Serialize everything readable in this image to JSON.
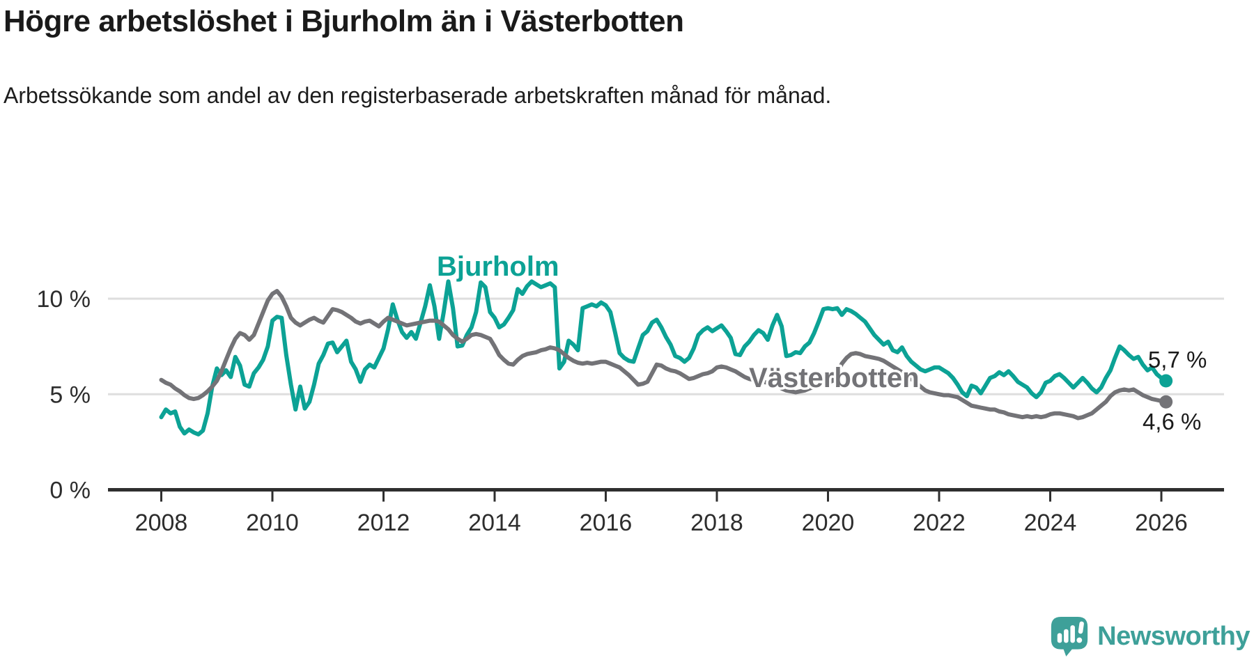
{
  "header": {
    "title": "Högre arbetslöshet i Bjurholm än i Västerbotten",
    "subtitle": "Arbetssökande som andel av den registerbaserade arbetskraften månad för månad."
  },
  "logo": {
    "text": "Newsworthy",
    "color": "#3ea099"
  },
  "chart_data": {
    "type": "line",
    "title": "Högre arbetslöshet i Bjurholm än i Västerbotten",
    "subtitle": "Arbetssökande som andel av den registerbaserade arbetskraften månad för månad.",
    "unit": "%",
    "x_start": {
      "year": 2008,
      "month": 1
    },
    "x_interval": "monthly",
    "xlim": [
      2007.05,
      2027.1
    ],
    "ylim": [
      0,
      12.3
    ],
    "grid": "horizontal",
    "y_ticks": [
      {
        "value": 10,
        "label": "10 %",
        "gridline": true
      },
      {
        "value": 5,
        "label": "5 %",
        "gridline": true
      },
      {
        "value": 0,
        "label": "0 %",
        "gridline": false
      }
    ],
    "x_ticks": [
      {
        "year": 2008,
        "label": "2008"
      },
      {
        "year": 2010,
        "label": "2010"
      },
      {
        "year": 2012,
        "label": "2012"
      },
      {
        "year": 2014,
        "label": "2014"
      },
      {
        "year": 2016,
        "label": "2016"
      },
      {
        "year": 2018,
        "label": "2018"
      },
      {
        "year": 2020,
        "label": "2020"
      },
      {
        "year": 2022,
        "label": "2022"
      },
      {
        "year": 2024,
        "label": "2024"
      },
      {
        "year": 2026,
        "label": "2026"
      }
    ],
    "series": [
      {
        "name": "Bjurholm",
        "color": "#0ca295",
        "end_value_label": "5,7 %",
        "values": [
          3.8,
          4.2,
          4.0,
          4.1,
          3.3,
          2.95,
          3.15,
          3.0,
          2.9,
          3.1,
          4.0,
          5.4,
          6.35,
          6.0,
          6.25,
          5.9,
          6.95,
          6.5,
          5.5,
          5.4,
          6.1,
          6.4,
          6.8,
          7.5,
          8.85,
          9.05,
          9.0,
          7.05,
          5.5,
          4.2,
          5.4,
          4.25,
          4.6,
          5.5,
          6.6,
          7.05,
          7.65,
          7.7,
          7.2,
          7.5,
          7.8,
          6.7,
          6.3,
          5.65,
          6.3,
          6.55,
          6.4,
          6.9,
          7.4,
          8.4,
          9.7,
          8.9,
          8.25,
          7.95,
          8.25,
          7.9,
          8.75,
          9.6,
          10.7,
          9.6,
          7.9,
          9.3,
          10.9,
          9.5,
          7.5,
          7.55,
          8.1,
          8.5,
          9.3,
          10.85,
          10.6,
          9.3,
          9.0,
          8.5,
          8.65,
          9.0,
          9.4,
          10.5,
          10.25,
          10.65,
          10.9,
          10.75,
          10.6,
          10.7,
          10.8,
          10.6,
          6.35,
          6.7,
          7.8,
          7.6,
          7.3,
          9.5,
          9.6,
          9.7,
          9.6,
          9.8,
          9.65,
          9.3,
          8.25,
          7.15,
          6.9,
          6.75,
          6.7,
          7.4,
          8.1,
          8.3,
          8.75,
          8.9,
          8.5,
          8.0,
          7.6,
          7.0,
          6.9,
          6.7,
          6.9,
          7.4,
          8.1,
          8.35,
          8.5,
          8.3,
          8.45,
          8.6,
          8.3,
          7.95,
          7.1,
          7.05,
          7.5,
          7.75,
          8.1,
          8.35,
          8.2,
          7.85,
          8.6,
          9.15,
          8.55,
          7.0,
          7.05,
          7.2,
          7.15,
          7.5,
          7.7,
          8.2,
          8.8,
          9.45,
          9.5,
          9.45,
          9.5,
          9.15,
          9.45,
          9.35,
          9.2,
          9.0,
          8.8,
          8.45,
          8.1,
          7.85,
          7.6,
          7.75,
          7.3,
          7.2,
          7.45,
          7.0,
          6.7,
          6.5,
          6.3,
          6.2,
          6.3,
          6.4,
          6.4,
          6.25,
          6.1,
          5.85,
          5.5,
          5.1,
          4.9,
          5.45,
          5.35,
          5.05,
          5.45,
          5.85,
          5.95,
          6.15,
          6.0,
          6.2,
          5.95,
          5.65,
          5.5,
          5.35,
          5.05,
          4.85,
          5.1,
          5.6,
          5.7,
          5.95,
          6.05,
          5.85,
          5.6,
          5.35,
          5.6,
          5.85,
          5.6,
          5.3,
          5.1,
          5.35,
          5.85,
          6.25,
          6.9,
          7.5,
          7.3,
          7.05,
          6.85,
          6.95,
          6.55,
          6.25,
          6.4,
          6.05,
          5.85,
          5.7
        ]
      },
      {
        "name": "Västerbotten",
        "color": "#737377",
        "end_value_label": "4,6 %",
        "values": [
          5.75,
          5.6,
          5.5,
          5.3,
          5.15,
          4.95,
          4.8,
          4.75,
          4.8,
          4.95,
          5.15,
          5.4,
          5.7,
          6.2,
          6.8,
          7.4,
          7.9,
          8.2,
          8.1,
          7.85,
          8.1,
          8.7,
          9.3,
          9.9,
          10.25,
          10.4,
          10.1,
          9.6,
          9.0,
          8.75,
          8.6,
          8.75,
          8.9,
          9.0,
          8.85,
          8.75,
          9.1,
          9.45,
          9.4,
          9.3,
          9.15,
          9.0,
          8.8,
          8.7,
          8.8,
          8.85,
          8.7,
          8.55,
          8.8,
          9.0,
          8.9,
          8.8,
          8.7,
          8.6,
          8.65,
          8.7,
          8.75,
          8.8,
          8.85,
          8.85,
          8.8,
          8.6,
          8.4,
          8.1,
          7.9,
          7.75,
          7.9,
          8.1,
          8.15,
          8.1,
          8.0,
          7.9,
          7.5,
          7.05,
          6.8,
          6.6,
          6.55,
          6.8,
          7.0,
          7.1,
          7.15,
          7.2,
          7.3,
          7.35,
          7.45,
          7.4,
          7.3,
          7.1,
          6.9,
          6.75,
          6.65,
          6.6,
          6.65,
          6.6,
          6.65,
          6.7,
          6.7,
          6.6,
          6.5,
          6.4,
          6.2,
          6.0,
          5.75,
          5.5,
          5.55,
          5.65,
          6.1,
          6.55,
          6.5,
          6.35,
          6.25,
          6.2,
          6.1,
          5.95,
          5.8,
          5.85,
          5.95,
          6.05,
          6.1,
          6.2,
          6.4,
          6.45,
          6.4,
          6.3,
          6.2,
          6.05,
          5.9,
          5.8,
          5.75,
          5.7,
          5.65,
          5.6,
          5.55,
          5.45,
          5.3,
          5.2,
          5.15,
          5.1,
          5.15,
          5.2,
          5.3,
          5.4,
          5.45,
          5.5,
          5.6,
          5.7,
          6.1,
          6.6,
          6.9,
          7.1,
          7.15,
          7.1,
          7.0,
          6.95,
          6.9,
          6.85,
          6.75,
          6.6,
          6.45,
          6.3,
          6.15,
          6.0,
          5.8,
          5.6,
          5.4,
          5.2,
          5.1,
          5.05,
          5.0,
          4.95,
          4.95,
          4.9,
          4.85,
          4.7,
          4.55,
          4.4,
          4.35,
          4.3,
          4.25,
          4.2,
          4.2,
          4.1,
          4.05,
          3.95,
          3.9,
          3.85,
          3.8,
          3.85,
          3.8,
          3.85,
          3.8,
          3.85,
          3.95,
          4.0,
          4.0,
          3.95,
          3.9,
          3.85,
          3.75,
          3.8,
          3.9,
          4.0,
          4.2,
          4.4,
          4.6,
          4.9,
          5.1,
          5.2,
          5.25,
          5.2,
          5.25,
          5.1,
          4.95,
          4.85,
          4.75,
          4.7,
          4.65,
          4.6
        ]
      }
    ],
    "series_labels": [
      {
        "text": "Bjurholm",
        "year": 2014.06,
        "value": 11.2,
        "color": "#0ca295"
      },
      {
        "text": "Västerbotten",
        "year": 2020.11,
        "value": 5.37,
        "color": "#737377"
      }
    ],
    "end_value_labels": [
      {
        "text": "5,7 %",
        "year": 2026.29,
        "value": 6.39,
        "color": "#1a1a1a"
      },
      {
        "text": "4,6 %",
        "year": 2026.19,
        "value": 3.15,
        "color": "#1a1a1a"
      }
    ],
    "colors": {
      "gridline": "#dedede",
      "axis": "#2f2f2f",
      "tick_label": "#2d2d2d"
    }
  }
}
